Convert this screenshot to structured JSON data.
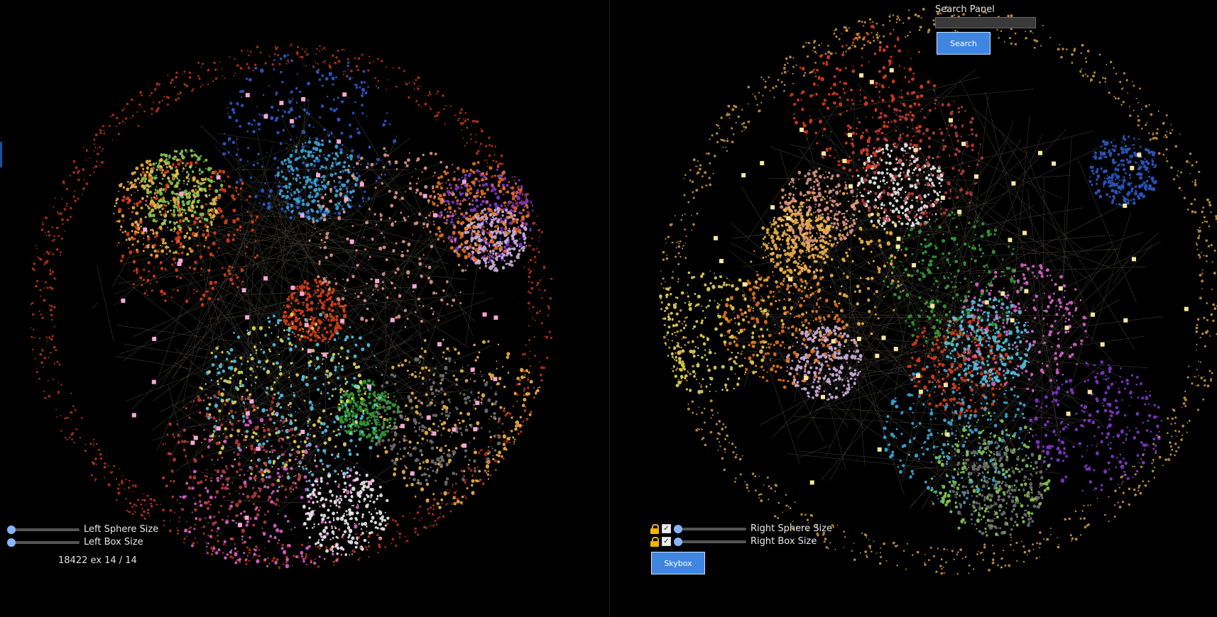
{
  "left_panel": {
    "sphere_size_label": "Left Sphere Size",
    "box_size_label": "Left Box Size",
    "counter_text": "18422 ex 14 / 14"
  },
  "right_panel": {
    "sphere_size_label": "Right Sphere Size",
    "box_size_label": "Right Box Size",
    "skybox_label": "Skybox"
  },
  "search_panel": {
    "title": "Search Panel",
    "input_value": "",
    "button_label": "Search"
  },
  "colors": {
    "background": "#000000",
    "button": "#3f86e0",
    "slider_thumb": "#8ab4f8",
    "lock": "#f0b400",
    "cluster_palette": [
      "#ffbf4d",
      "#e8421a",
      "#2f5fd0",
      "#41b3e6",
      "#e76ad6",
      "#3aa63a",
      "#f3e45a",
      "#ffffff",
      "#8b3cd6",
      "#8fd85a",
      "#f0a090",
      "#e0c0f0",
      "#f07a20",
      "#777777",
      "#5ad0f0",
      "#c04040"
    ]
  },
  "icons": [
    "lock-icon",
    "checkbox-icon",
    "slider-thumb"
  ]
}
